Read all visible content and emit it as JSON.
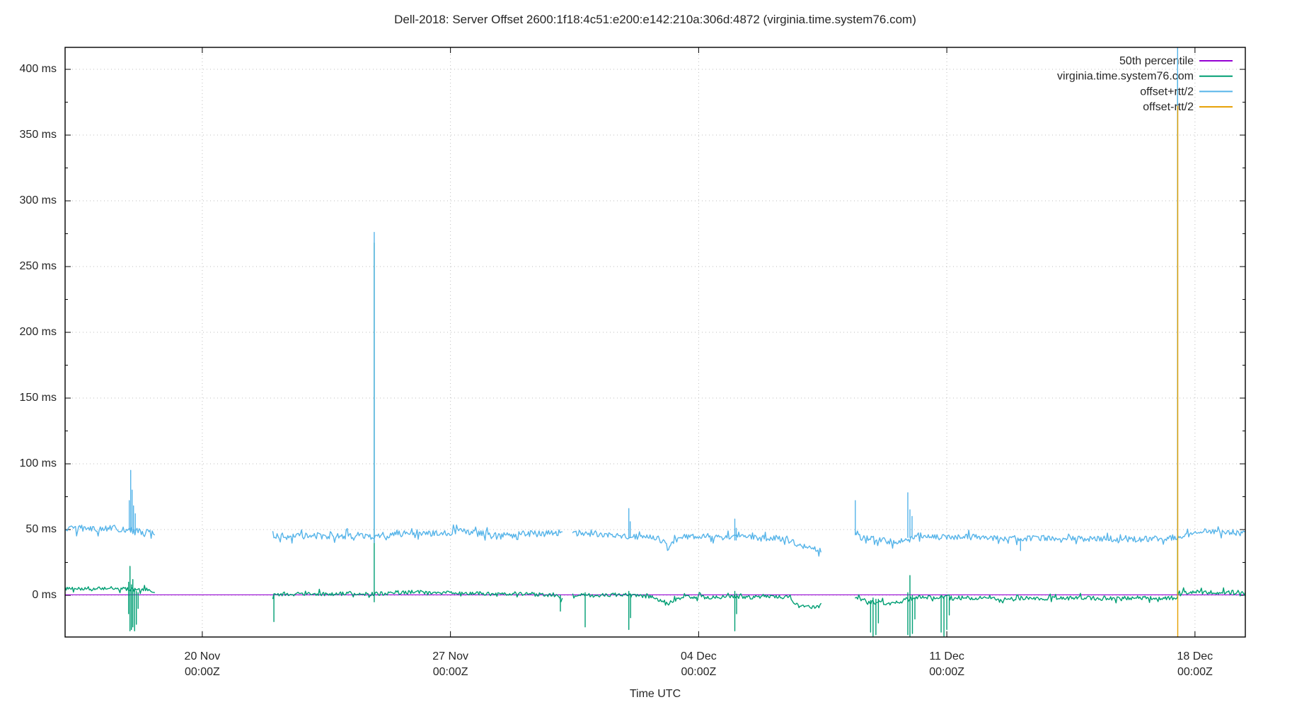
{
  "palette": {
    "background": "#ffffff",
    "text": "#262626",
    "grid": "#bdbdbd",
    "axis": "#000000",
    "purple": "#9400d3",
    "green": "#009e73",
    "blue": "#56b4e9",
    "orange": "#e69f00"
  },
  "chart_data": {
    "type": "line",
    "title": "Dell-2018: Server Offset 2600:1f18:4c51:e200:e142:210a:306d:4872 (virginia.time.system76.com)",
    "xlabel": "Time UTC",
    "legend_position": "top-right",
    "x_axis": {
      "title": "Time UTC",
      "range_days": [
        -3.87,
        29.42
      ],
      "ticks": [
        {
          "day": 0,
          "line1": "20 Nov",
          "line2": "00:00Z"
        },
        {
          "day": 7,
          "line1": "27 Nov",
          "line2": "00:00Z"
        },
        {
          "day": 14,
          "line1": "04 Dec",
          "line2": "00:00Z"
        },
        {
          "day": 21,
          "line1": "11 Dec",
          "line2": "00:00Z"
        },
        {
          "day": 28,
          "line1": "18 Dec",
          "line2": "00:00Z"
        }
      ]
    },
    "y_axis": {
      "unit": "ms",
      "range": [
        -31.7,
        416.7
      ],
      "major_tick_values": [
        0,
        50,
        100,
        150,
        200,
        250,
        300,
        350,
        400
      ],
      "minor_tick_values": [
        25,
        75,
        125,
        175,
        225,
        275,
        325,
        375
      ],
      "grid": true
    },
    "series": [
      {
        "name": "50th percentile",
        "color": "#9400d3",
        "line_width": 1.2,
        "base_segments": [
          {
            "noise": 0,
            "points": [
              [
                -3.87,
                0.4
              ],
              [
                29.42,
                0.4
              ]
            ]
          }
        ],
        "spikes": []
      },
      {
        "name": "virginia.time.system76.com",
        "color": "#009e73",
        "line_width": 1.4,
        "base_segments": [
          {
            "noise": 1.4,
            "points": [
              [
                -3.87,
                5
              ],
              [
                -3.4,
                5.5
              ],
              [
                -3.0,
                5
              ],
              [
                -2.6,
                6
              ],
              [
                -2.2,
                5
              ],
              [
                -1.9,
                4
              ],
              [
                -1.6,
                4.5
              ],
              [
                -1.35,
                3.5
              ]
            ]
          },
          {
            "noise": 1.5,
            "points": [
              [
                1.99,
                1
              ],
              [
                2.4,
                0.5
              ],
              [
                3.0,
                1.5
              ],
              [
                3.6,
                1
              ],
              [
                4.2,
                1.5
              ],
              [
                4.85,
                1
              ],
              [
                5.4,
                2
              ],
              [
                6.0,
                2.5
              ],
              [
                6.6,
                2
              ],
              [
                7.2,
                2
              ],
              [
                7.8,
                1.5
              ],
              [
                8.4,
                1
              ],
              [
                9.0,
                1.5
              ],
              [
                9.6,
                0.5
              ],
              [
                10.05,
                0
              ],
              [
                10.15,
                -3
              ]
            ]
          },
          {
            "noise": 1.5,
            "points": [
              [
                10.45,
                0.5
              ],
              [
                11.0,
                0
              ],
              [
                11.5,
                0.5
              ],
              [
                12.0,
                0
              ],
              [
                12.6,
                -1
              ],
              [
                12.95,
                -4
              ],
              [
                13.15,
                -6
              ],
              [
                13.35,
                -3
              ],
              [
                13.6,
                -1
              ],
              [
                14.2,
                -1.5
              ],
              [
                14.8,
                -1
              ],
              [
                15.4,
                -1.5
              ],
              [
                16.0,
                -1
              ],
              [
                16.55,
                -1.5
              ],
              [
                16.8,
                -8
              ],
              [
                17.1,
                -9
              ],
              [
                17.45,
                -8.5
              ]
            ]
          },
          {
            "noise": 1.5,
            "points": [
              [
                18.42,
                0
              ],
              [
                18.55,
                -3
              ],
              [
                18.8,
                -5
              ],
              [
                19.1,
                -5.5
              ],
              [
                19.4,
                -6
              ],
              [
                19.7,
                -5
              ],
              [
                19.95,
                -2
              ],
              [
                20.2,
                -1
              ],
              [
                20.6,
                -1.5
              ],
              [
                21.0,
                -1
              ],
              [
                21.4,
                -2
              ],
              [
                22.0,
                -2
              ],
              [
                22.7,
                -2.5
              ],
              [
                23.4,
                -2
              ],
              [
                24.1,
                -2.5
              ],
              [
                24.8,
                -2
              ],
              [
                25.5,
                -2.5
              ],
              [
                26.2,
                -2
              ],
              [
                26.9,
                -2
              ],
              [
                27.46,
                -2
              ],
              [
                27.56,
                2
              ],
              [
                28.0,
                2.5
              ],
              [
                28.6,
                2
              ],
              [
                29.1,
                2.5
              ],
              [
                29.42,
                3
              ]
            ]
          }
        ],
        "spikes": [
          [
            -2.08,
            10,
            -14
          ],
          [
            -2.04,
            22,
            -27
          ],
          [
            -2.0,
            8,
            -26
          ],
          [
            -1.96,
            12,
            -24
          ],
          [
            -1.91,
            5,
            -27
          ],
          [
            -1.86,
            3,
            -22
          ],
          [
            -1.81,
            2,
            -10
          ],
          [
            2.02,
            1,
            -20
          ],
          [
            4.85,
            268,
            -5
          ],
          [
            10.1,
            0,
            -12
          ],
          [
            10.8,
            2,
            -24
          ],
          [
            12.03,
            3,
            -26
          ],
          [
            12.08,
            1,
            -17
          ],
          [
            15.02,
            3,
            -27
          ],
          [
            15.07,
            1,
            -14
          ],
          [
            18.85,
            -4,
            -28
          ],
          [
            18.92,
            -2,
            -31
          ],
          [
            19.0,
            -3,
            -30
          ],
          [
            19.07,
            -3,
            -21
          ],
          [
            19.9,
            2,
            -30
          ],
          [
            19.96,
            15,
            -31
          ],
          [
            20.03,
            0,
            -29
          ],
          [
            20.1,
            -2,
            -18
          ],
          [
            20.84,
            0,
            -28
          ],
          [
            20.92,
            -1,
            -31
          ],
          [
            21.0,
            -1,
            -26
          ],
          [
            21.07,
            -2,
            -15
          ],
          [
            27.51,
            395,
            -2
          ]
        ]
      },
      {
        "name": "offset+rtt/2",
        "color": "#56b4e9",
        "line_width": 1.4,
        "base_segments": [
          {
            "noise": 2.4,
            "points": [
              [
                -3.87,
                50
              ],
              [
                -3.4,
                51
              ],
              [
                -3.0,
                50
              ],
              [
                -2.6,
                51.5
              ],
              [
                -2.2,
                50
              ],
              [
                -1.9,
                49
              ],
              [
                -1.6,
                48
              ],
              [
                -1.35,
                46.5
              ]
            ]
          },
          {
            "noise": 2.6,
            "points": [
              [
                1.99,
                46
              ],
              [
                2.5,
                44.5
              ],
              [
                3.1,
                45.5
              ],
              [
                3.7,
                45
              ],
              [
                4.3,
                45.5
              ],
              [
                4.85,
                45
              ],
              [
                5.4,
                46
              ],
              [
                6.0,
                47.5
              ],
              [
                6.6,
                47
              ],
              [
                7.2,
                48.5
              ],
              [
                7.8,
                47
              ],
              [
                8.3,
                45
              ],
              [
                8.9,
                46.5
              ],
              [
                9.5,
                47
              ],
              [
                10.15,
                48
              ]
            ]
          },
          {
            "noise": 2.2,
            "points": [
              [
                10.45,
                47
              ],
              [
                11.0,
                46
              ],
              [
                11.5,
                45.5
              ],
              [
                12.0,
                45
              ],
              [
                12.6,
                44
              ],
              [
                12.95,
                41
              ],
              [
                13.15,
                38.5
              ],
              [
                13.35,
                41
              ],
              [
                13.6,
                44
              ],
              [
                14.2,
                45
              ],
              [
                14.8,
                44
              ],
              [
                15.4,
                44
              ],
              [
                16.0,
                43.5
              ],
              [
                16.55,
                43
              ],
              [
                16.8,
                37.5
              ],
              [
                17.1,
                36.5
              ],
              [
                17.45,
                34
              ]
            ]
          },
          {
            "noise": 2.2,
            "points": [
              [
                18.42,
                46
              ],
              [
                18.6,
                44
              ],
              [
                18.9,
                43
              ],
              [
                19.2,
                42
              ],
              [
                19.5,
                40.5
              ],
              [
                19.75,
                41
              ],
              [
                19.95,
                44.5
              ],
              [
                20.2,
                45.5
              ],
              [
                20.6,
                44.5
              ],
              [
                21.0,
                44
              ],
              [
                21.5,
                44.5
              ],
              [
                22.0,
                44
              ],
              [
                22.7,
                43.5
              ],
              [
                23.4,
                43.5
              ],
              [
                24.1,
                43.5
              ],
              [
                24.8,
                43
              ],
              [
                25.5,
                43
              ],
              [
                26.2,
                42.5
              ],
              [
                26.9,
                43
              ],
              [
                27.4,
                44
              ],
              [
                27.7,
                46
              ],
              [
                28.1,
                48.5
              ],
              [
                28.45,
                49
              ],
              [
                28.8,
                47
              ],
              [
                29.1,
                47.5
              ],
              [
                29.42,
                47.5
              ]
            ]
          }
        ],
        "spikes": [
          [
            -2.06,
            72,
            50
          ],
          [
            -2.02,
            95,
            50
          ],
          [
            -1.98,
            80,
            50
          ],
          [
            -1.94,
            68,
            49
          ],
          [
            -1.89,
            62,
            49
          ],
          [
            4.85,
            276,
            40
          ],
          [
            12.03,
            66,
            44
          ],
          [
            12.07,
            56,
            44
          ],
          [
            15.02,
            58,
            42
          ],
          [
            15.06,
            51,
            42
          ],
          [
            18.42,
            72,
            46
          ],
          [
            19.9,
            78,
            44
          ],
          [
            19.96,
            65,
            44
          ],
          [
            20.02,
            60,
            45
          ],
          [
            23.08,
            43,
            34
          ],
          [
            27.51,
            420,
            43
          ]
        ]
      },
      {
        "name": "offset-rtt/2",
        "color": "#e69f00",
        "line_width": 1.4,
        "base_segments": [],
        "spikes": [
          [
            27.515,
            372,
            -31.7
          ]
        ]
      }
    ]
  }
}
